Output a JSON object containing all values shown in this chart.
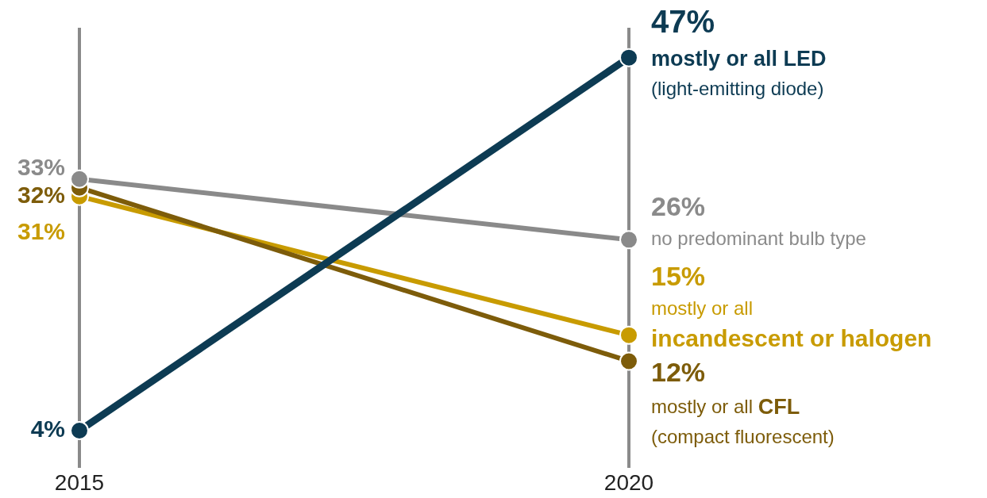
{
  "chart_data": {
    "type": "line",
    "categories": [
      "2015",
      "2020"
    ],
    "grid": "x",
    "marker": "circle",
    "line_style": "solid",
    "series": [
      {
        "name": "mostly or all LED\n(light-emitting diode)",
        "color": "#0d3b53",
        "values": [
          4,
          47
        ],
        "value_labels": [
          "4%",
          "47%"
        ]
      },
      {
        "name": "no predominant bulb type",
        "color": "#8a8a8a",
        "values": [
          33,
          26
        ],
        "value_labels": [
          "33%",
          "26%"
        ]
      },
      {
        "name": "mostly or all\nincandescent or halogen",
        "color": "#c89b00",
        "values": [
          31,
          15
        ],
        "value_labels": [
          "31%",
          "15%"
        ]
      },
      {
        "name": "mostly or all CFL\n(compact fluorescent)",
        "color": "#7d5c0a",
        "values": [
          32,
          12
        ],
        "value_labels": [
          "32%",
          "12%"
        ]
      }
    ]
  }
}
